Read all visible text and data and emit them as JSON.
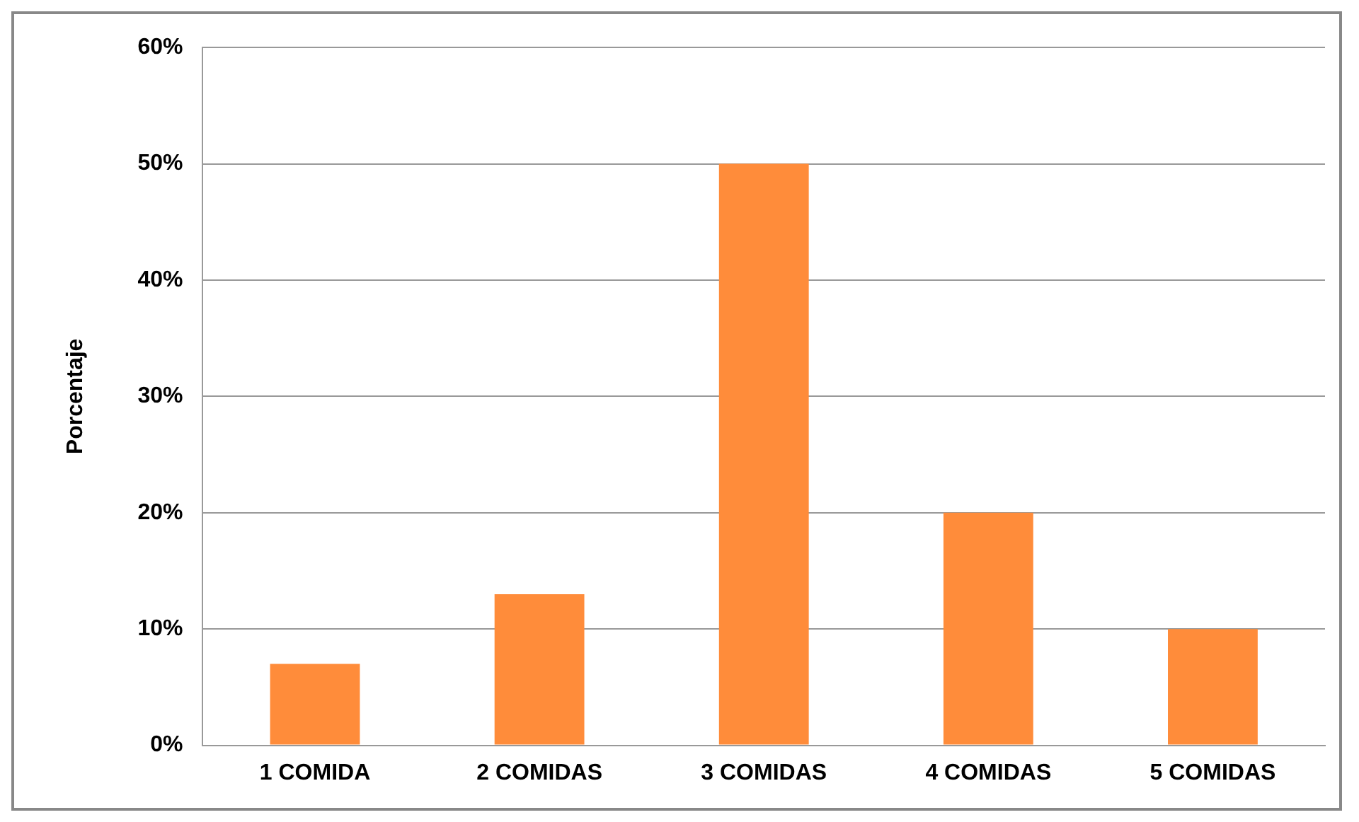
{
  "chart_data": {
    "type": "bar",
    "ylabel": "Porcentaje",
    "categories": [
      "1 COMIDA",
      "2 COMIDAS",
      "3 COMIDAS",
      "4 COMIDAS",
      "5 COMIDAS"
    ],
    "values": [
      7,
      13,
      50,
      20,
      10
    ],
    "color": "#ff8c3a",
    "ylim": [
      0,
      60
    ],
    "yticks": [
      {
        "value": 0,
        "label": "0%"
      },
      {
        "value": 10,
        "label": "10%"
      },
      {
        "value": 20,
        "label": "20%"
      },
      {
        "value": 30,
        "label": "30%"
      },
      {
        "value": 40,
        "label": "40%"
      },
      {
        "value": 50,
        "label": "50%"
      },
      {
        "value": 60,
        "label": "60%"
      }
    ],
    "grid": "y",
    "legend": false
  }
}
